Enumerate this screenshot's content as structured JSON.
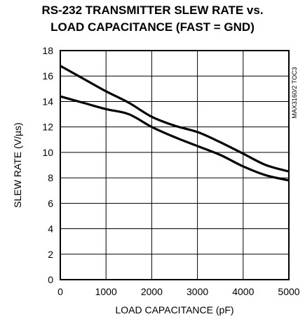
{
  "chart_data": {
    "type": "line",
    "title_line1": "RS-232 TRANSMITTER SLEW RATE vs.",
    "title_line2": "LOAD CAPACITANCE (FAST = GND)",
    "xlabel": "LOAD CAPACITANCE (pF)",
    "ylabel": "SLEW RATE (V/µs)",
    "chip_tag": "MAX3160/2 TOC3",
    "xlim": [
      0,
      5000
    ],
    "ylim": [
      0,
      18
    ],
    "xticks": [
      0,
      1000,
      2000,
      3000,
      4000,
      5000
    ],
    "yticks": [
      0,
      2,
      4,
      6,
      8,
      10,
      12,
      14,
      16,
      18
    ],
    "grid": true,
    "series": [
      {
        "x": [
          0,
          500,
          1000,
          1500,
          2000,
          2500,
          3000,
          3500,
          4000,
          4500,
          5000
        ],
        "values": [
          16.8,
          15.8,
          14.8,
          13.9,
          12.8,
          12.1,
          11.6,
          10.8,
          9.9,
          9.0,
          8.5
        ]
      },
      {
        "x": [
          0,
          500,
          1000,
          1500,
          2000,
          2500,
          3000,
          3500,
          4000,
          4500,
          5000
        ],
        "values": [
          14.4,
          13.9,
          13.4,
          13.0,
          12.0,
          11.2,
          10.5,
          9.8,
          8.9,
          8.2,
          7.8
        ]
      }
    ]
  }
}
